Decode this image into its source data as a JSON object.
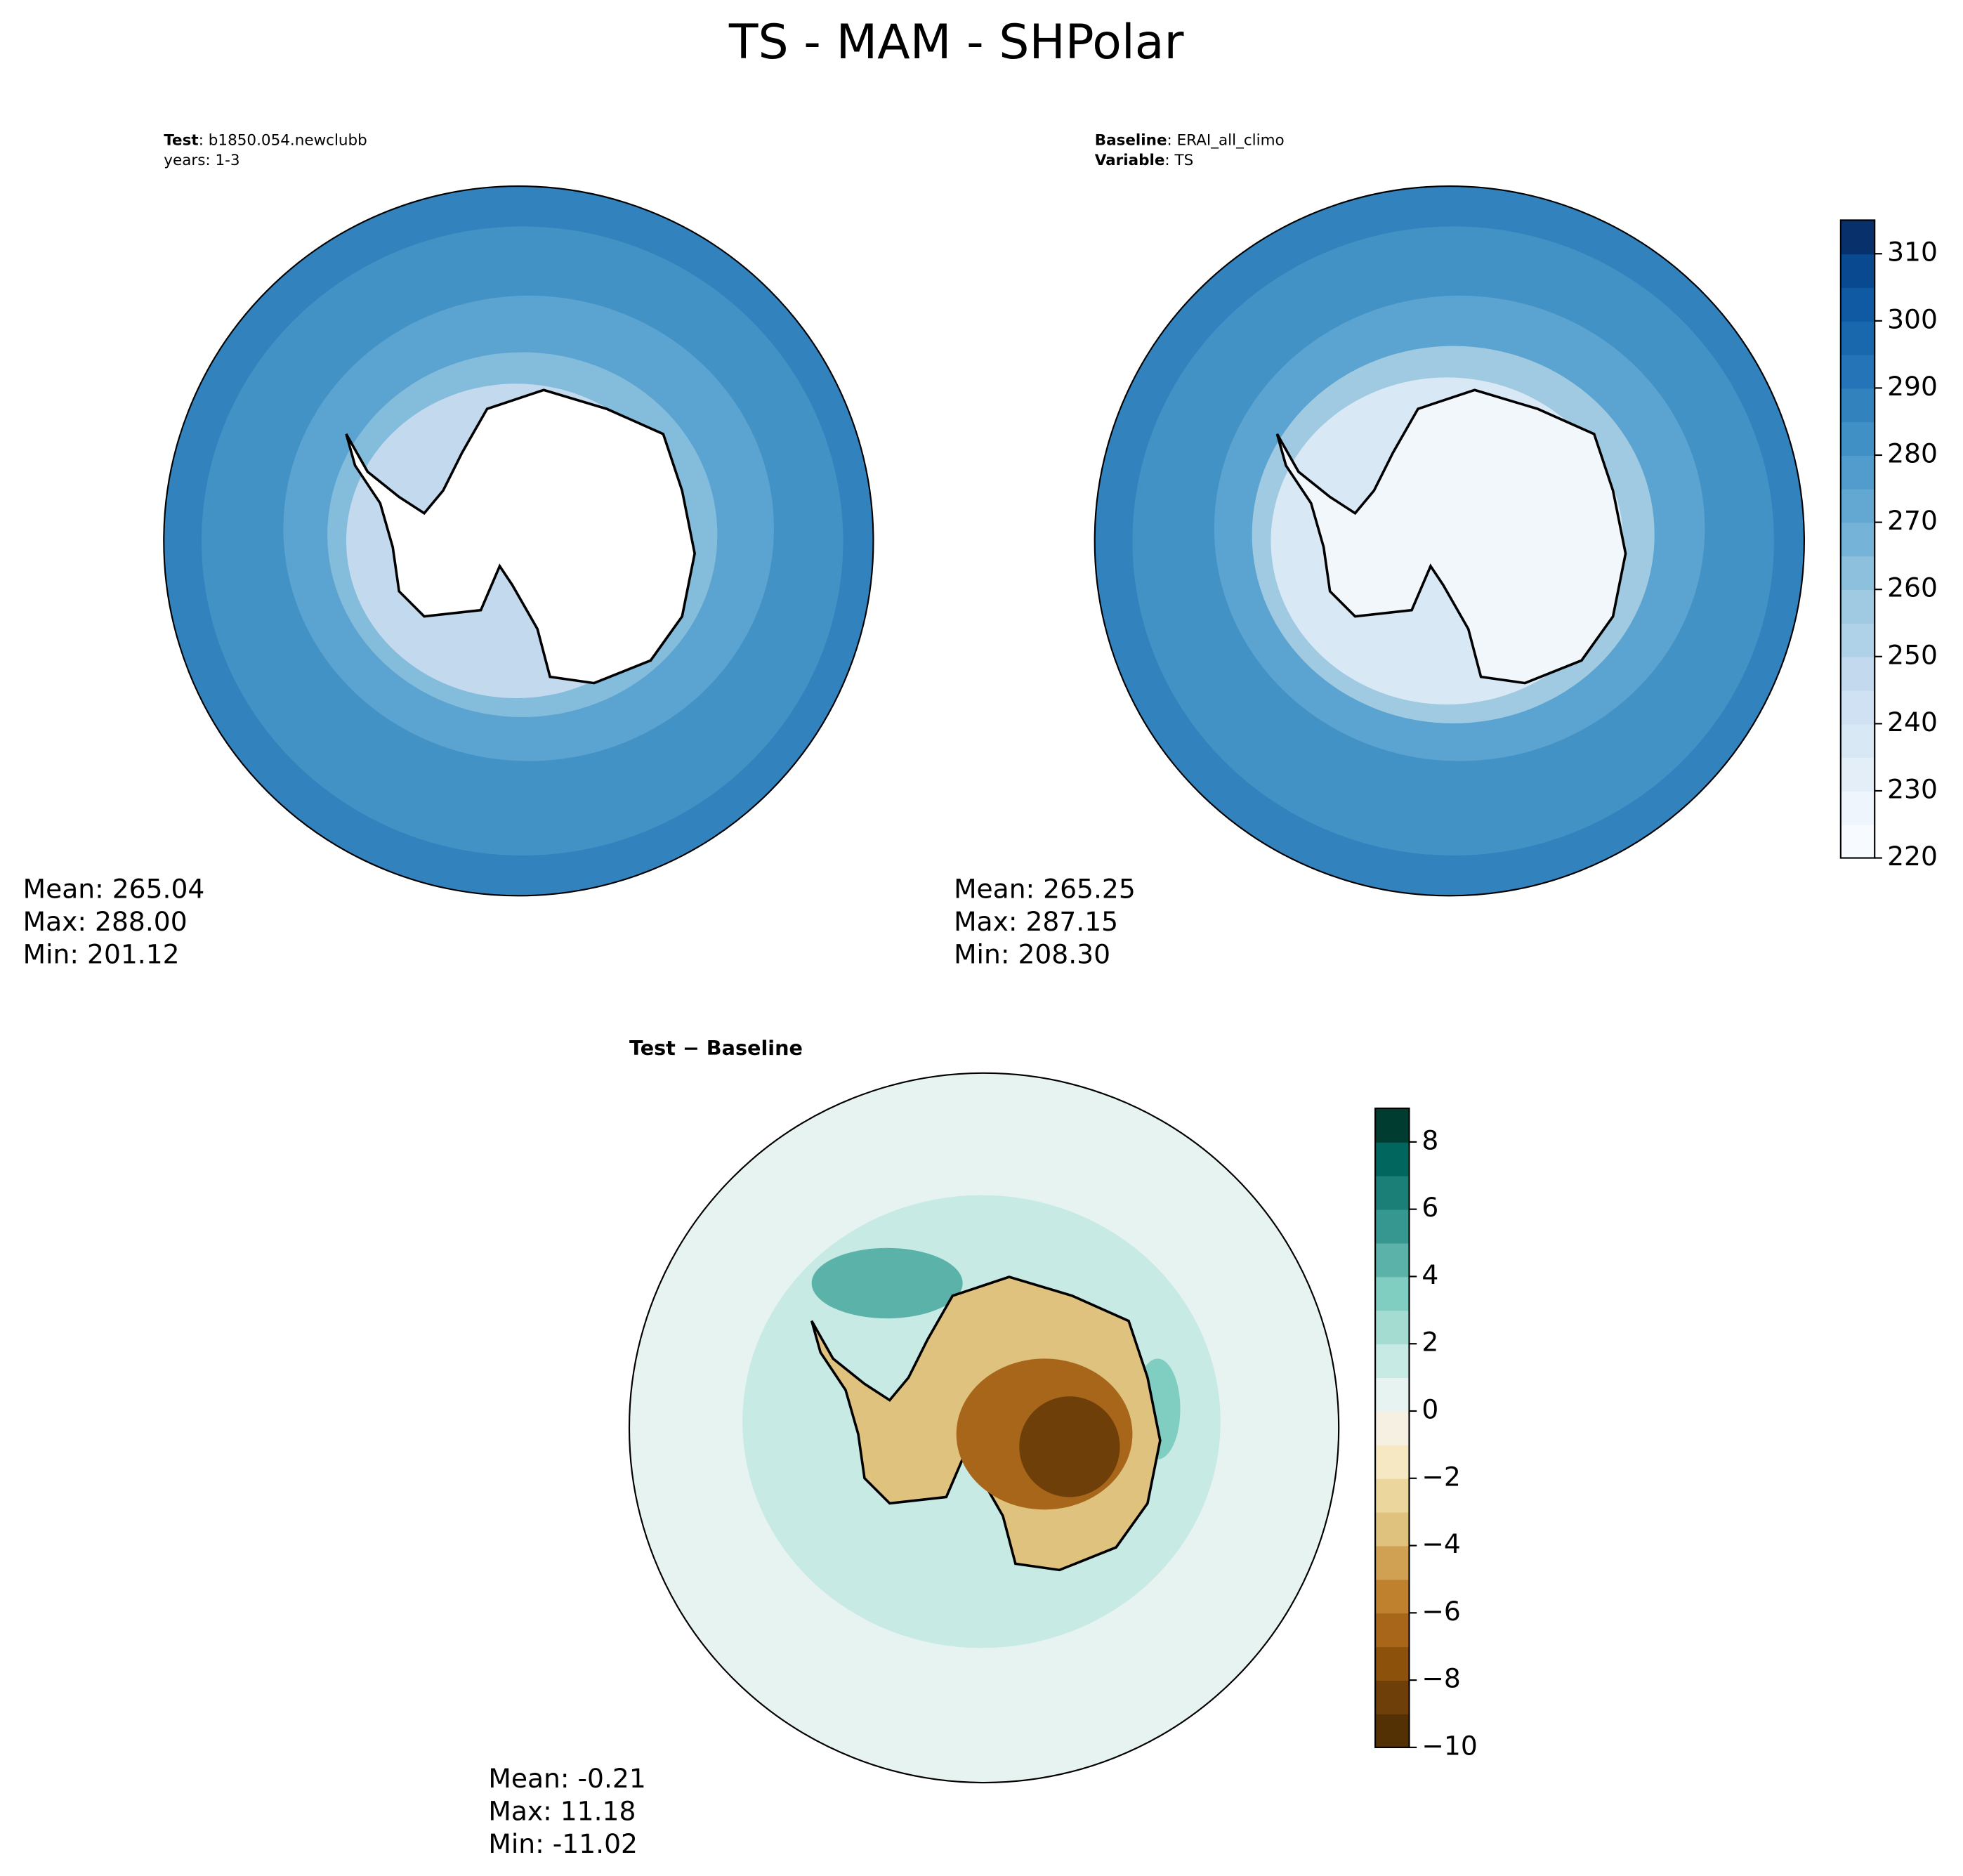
{
  "title": "TS - MAM - SHPolar",
  "panels": [
    {
      "line1_bold": "Test",
      "line1": ": b1850.054.newclubb",
      "line2": "years: 1-3",
      "stats": [
        "Mean: 265.04",
        "Max: 288.00",
        "Min: 201.12"
      ]
    },
    {
      "line1_bold": "Baseline",
      "line1": ": ERAI_all_climo",
      "line2_bold": "Variable",
      "line2": ": TS",
      "stats": [
        "Mean: 265.25",
        "Max: 287.15",
        "Min: 208.30"
      ]
    },
    {
      "line1_bold": "Test − Baseline",
      "stats": [
        "Mean: -0.21",
        "Max: 11.18",
        "Min: -11.02"
      ]
    }
  ],
  "colorbars": [
    {
      "lim": [
        220,
        315
      ],
      "ticks": [
        220,
        230,
        240,
        250,
        260,
        270,
        280,
        290,
        300,
        310
      ],
      "colors": [
        "#f7fbff",
        "#eef5fc",
        "#e3eef9",
        "#d9e8f5",
        "#cfe1f2",
        "#c2d9ee",
        "#b0d2e8",
        "#9fcae1",
        "#8cc0dd",
        "#75b4d8",
        "#62a8d3",
        "#519ccc",
        "#4090c5",
        "#3282be",
        "#2474b7",
        "#1967ad",
        "#0f5aa3",
        "#08498f",
        "#08306b"
      ]
    },
    {
      "lim": [
        -10,
        9
      ],
      "ticks": [
        {
          "value": -10,
          "label": "−10"
        },
        {
          "value": -8,
          "label": "−8"
        },
        {
          "value": -6,
          "label": "−6"
        },
        {
          "value": -4,
          "label": "−4"
        },
        {
          "value": -2,
          "label": "−2"
        },
        0,
        2,
        4,
        6,
        8
      ],
      "colors": [
        "#543005",
        "#6f3f09",
        "#8c510a",
        "#a8661b",
        "#bf812d",
        "#d0a153",
        "#dfc27d",
        "#ebd69e",
        "#f6e8c3",
        "#f5f0e2",
        "#e7f3f1",
        "#c7eae5",
        "#a4dcd2",
        "#80cdc1",
        "#5bb2a8",
        "#35978f",
        "#1c7f77",
        "#01665e",
        "#003c30"
      ]
    }
  ]
}
